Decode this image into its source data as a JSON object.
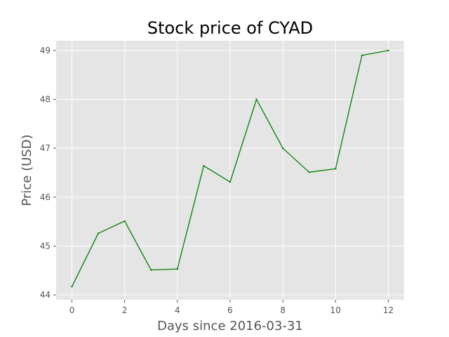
{
  "chart_data": {
    "type": "line",
    "title": "Stock price of CYAD",
    "xlabel": "Days since 2016-03-31",
    "ylabel": "Price (USD)",
    "x": [
      0,
      1,
      2,
      3,
      4,
      5,
      6,
      7,
      8,
      9,
      10,
      11,
      12
    ],
    "series": [
      {
        "values": [
          44.17,
          45.26,
          45.51,
          44.51,
          44.53,
          46.64,
          46.31,
          48.0,
          47.0,
          46.51,
          46.58,
          48.9,
          49.0
        ],
        "color": "#008000"
      }
    ],
    "xlim": [
      -0.6,
      12.6
    ],
    "ylim": [
      43.9,
      49.2
    ],
    "xticks": [
      0,
      2,
      4,
      6,
      8,
      10,
      12
    ],
    "yticks": [
      44,
      45,
      46,
      47,
      48,
      49
    ],
    "xtick_labels": [
      "0",
      "2",
      "4",
      "6",
      "8",
      "10",
      "12"
    ],
    "ytick_labels": [
      "44",
      "45",
      "46",
      "47",
      "48",
      "49"
    ],
    "grid": true,
    "style": {
      "plot_background": "#e5e5e5",
      "grid_color": "#ffffff",
      "tick_color": "#555555"
    }
  }
}
